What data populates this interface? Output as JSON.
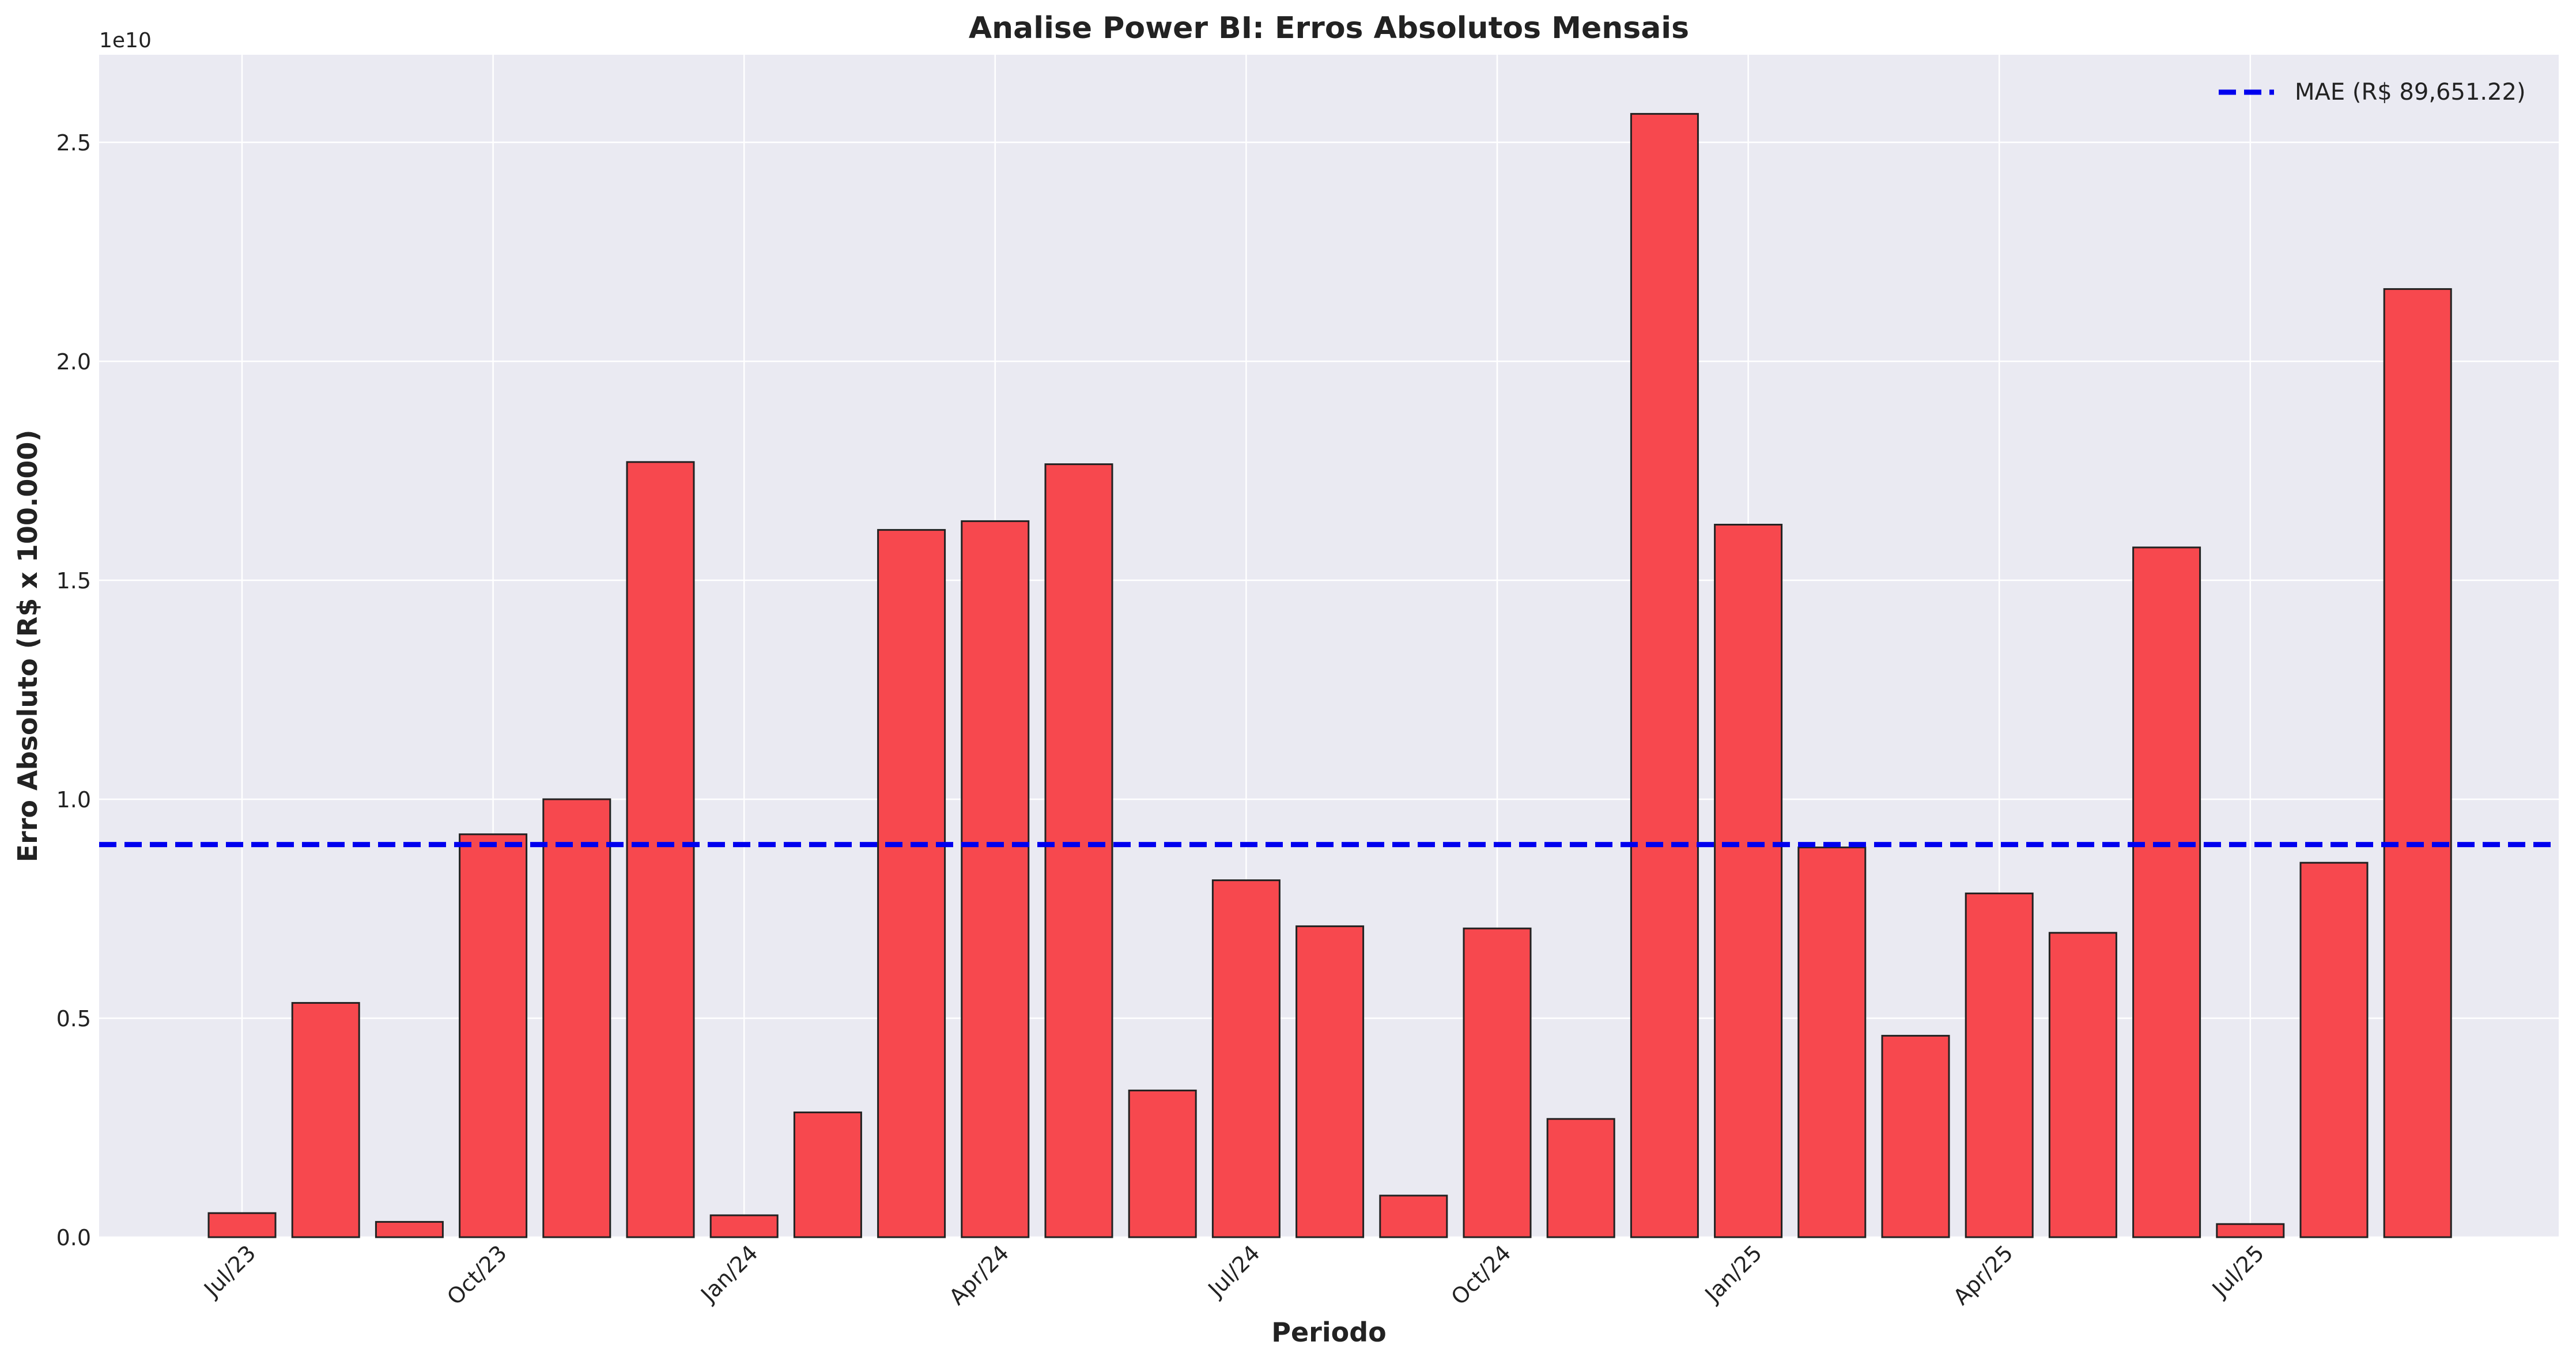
{
  "chart_data": {
    "type": "bar",
    "title": "Analise Power BI: Erros Absolutos Mensais",
    "xlabel": "Periodo",
    "ylabel": "Erro Absoluto (R$ x 100.000)",
    "y_offset_label": "1e10",
    "ylim": [
      0,
      27000000000.0
    ],
    "yticks": [
      {
        "value": 0,
        "label": "0.0"
      },
      {
        "value": 5000000000.0,
        "label": "0.5"
      },
      {
        "value": 10000000000.0,
        "label": "1.0"
      },
      {
        "value": 15000000000.0,
        "label": "1.5"
      },
      {
        "value": 20000000000.0,
        "label": "2.0"
      },
      {
        "value": 25000000000.0,
        "label": "2.5"
      }
    ],
    "categories": [
      "2023-07",
      "2023-08",
      "2023-09",
      "2023-10",
      "2023-11",
      "2023-12",
      "2024-01",
      "2024-02",
      "2024-03",
      "2024-04",
      "2024-05",
      "2024-06",
      "2024-07",
      "2024-08",
      "2024-09",
      "2024-10",
      "2024-11",
      "2024-12",
      "2025-01",
      "2025-02",
      "2025-03",
      "2025-04",
      "2025-05",
      "2025-06",
      "2025-07",
      "2025-08",
      "2025-09"
    ],
    "values": [
      550000000.0,
      5350000000.0,
      350000000.0,
      9200000000.0,
      10000000000.0,
      17700000000.0,
      500000000.0,
      2850000000.0,
      16150000000.0,
      16350000000.0,
      17650000000.0,
      3350000000.0,
      8150000000.0,
      7100000000.0,
      950000000.0,
      7050000000.0,
      2700000000.0,
      25650000000.0,
      16270000000.0,
      8900000000.0,
      4600000000.0,
      7850000000.0,
      6950000000.0,
      15750000000.0,
      300000000.0,
      8550000000.0,
      21650000000.0
    ],
    "xtick_labels": [
      {
        "index": 0,
        "label": "Jul/23"
      },
      {
        "index": 3,
        "label": "Oct/23"
      },
      {
        "index": 6,
        "label": "Jan/24"
      },
      {
        "index": 9,
        "label": "Apr/24"
      },
      {
        "index": 12,
        "label": "Jul/24"
      },
      {
        "index": 15,
        "label": "Oct/24"
      },
      {
        "index": 18,
        "label": "Jan/25"
      },
      {
        "index": 21,
        "label": "Apr/25"
      },
      {
        "index": 24,
        "label": "Jul/25"
      }
    ],
    "mae_line": {
      "value": 8965122000.0,
      "label": "MAE (R$ 89,651.22)",
      "color": "#0000ee"
    },
    "colors": {
      "bar_fill": "#f7444a",
      "bar_edge": "#222222",
      "plot_bg": "#eaeaf2",
      "grid": "#ffffff"
    },
    "grid": true,
    "legend_position": "top-right"
  }
}
